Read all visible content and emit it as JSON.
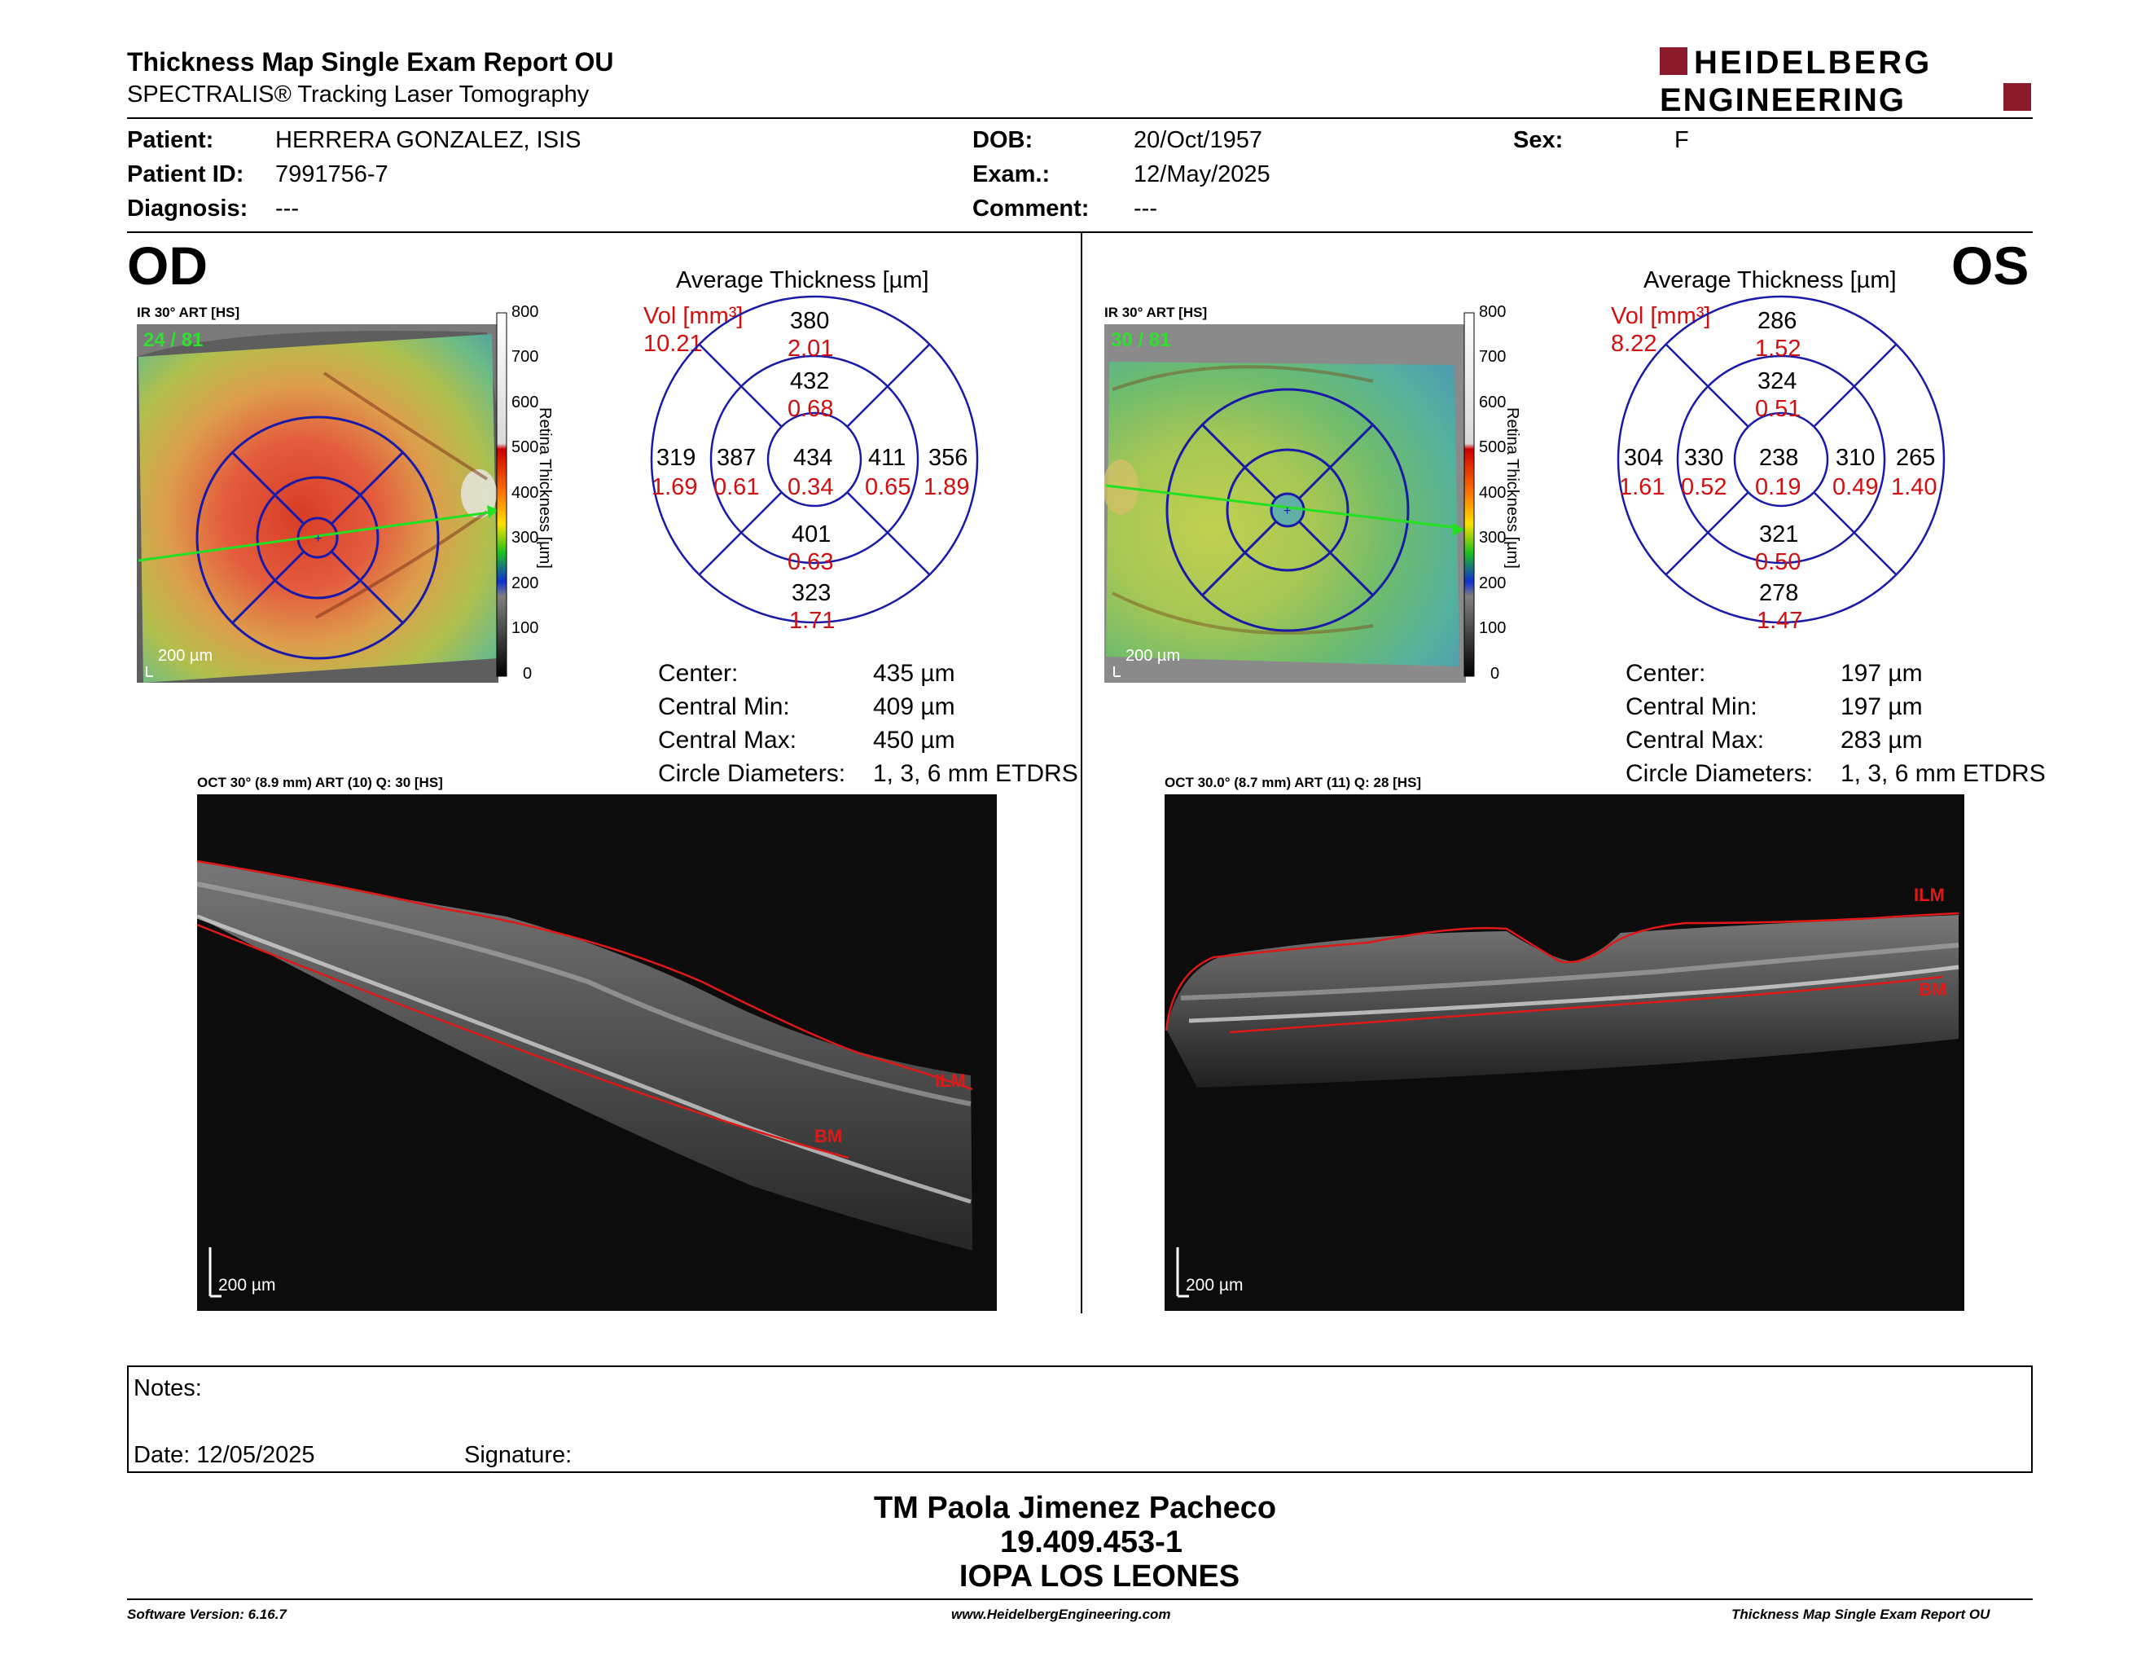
{
  "header": {
    "title": "Thickness Map Single Exam Report OU",
    "subtitle": "SPECTRALIS® Tracking Laser Tomography",
    "logo_line1": "HEIDELBERG",
    "logo_line2": "ENGINEERING",
    "logo_color": "#8b1a2b"
  },
  "patient": {
    "patient_label": "Patient:",
    "patient_value": "HERRERA GONZALEZ, ISIS",
    "id_label": "Patient ID:",
    "id_value": "7991756-7",
    "diag_label": "Diagnosis:",
    "diag_value": "---",
    "dob_label": "DOB:",
    "dob_value": "20/Oct/1957",
    "exam_label": "Exam.:",
    "exam_value": "12/May/2025",
    "comment_label": "Comment:",
    "comment_value": "---",
    "sex_label": "Sex:",
    "sex_value": "F"
  },
  "od": {
    "eye": "OD",
    "ir_label": "IR 30° ART [HS]",
    "frames": "24 / 81",
    "scale_bar": "200 µm",
    "avg_title": "Average Thickness [µm]",
    "vol_label": "Vol [mm³]",
    "vol_total": "10.21",
    "grid": {
      "center": {
        "t": "434",
        "v": "0.34"
      },
      "inner_sup": {
        "t": "432",
        "v": "0.68"
      },
      "inner_inf": {
        "t": "401",
        "v": "0.63"
      },
      "inner_left": {
        "t": "387",
        "v": "0.61"
      },
      "inner_right": {
        "t": "411",
        "v": "0.65"
      },
      "outer_sup": {
        "t": "380",
        "v": "2.01"
      },
      "outer_inf": {
        "t": "323",
        "v": "1.71"
      },
      "outer_left": {
        "t": "319",
        "v": "1.69"
      },
      "outer_right": {
        "t": "356",
        "v": "1.89"
      }
    },
    "stats": {
      "center_label": "Center:",
      "center_value": "435 µm",
      "min_label": "Central Min:",
      "min_value": "409 µm",
      "max_label": "Central Max:",
      "max_value": "450 µm",
      "diam_label": "Circle Diameters:",
      "diam_value": "1, 3, 6 mm ETDRS"
    },
    "oct_label": "OCT 30° (8.9 mm) ART (10) Q: 30 [HS]",
    "oct_scale": "200 µm",
    "ilm": "ILM",
    "bm": "BM"
  },
  "os": {
    "eye": "OS",
    "ir_label": "IR 30° ART [HS]",
    "frames": "30 / 81",
    "scale_bar": "200 µm",
    "avg_title": "Average Thickness [µm]",
    "vol_label": "Vol [mm³]",
    "vol_total": "8.22",
    "grid": {
      "center": {
        "t": "238",
        "v": "0.19"
      },
      "inner_sup": {
        "t": "324",
        "v": "0.51"
      },
      "inner_inf": {
        "t": "321",
        "v": "0.50"
      },
      "inner_left": {
        "t": "330",
        "v": "0.52"
      },
      "inner_right": {
        "t": "310",
        "v": "0.49"
      },
      "outer_sup": {
        "t": "286",
        "v": "1.52"
      },
      "outer_inf": {
        "t": "278",
        "v": "1.47"
      },
      "outer_left": {
        "t": "304",
        "v": "1.61"
      },
      "outer_right": {
        "t": "265",
        "v": "1.40"
      }
    },
    "stats": {
      "center_label": "Center:",
      "center_value": "197 µm",
      "min_label": "Central Min:",
      "min_value": "197 µm",
      "max_label": "Central Max:",
      "max_value": "283 µm",
      "diam_label": "Circle Diameters:",
      "diam_value": "1, 3, 6 mm ETDRS"
    },
    "oct_label": "OCT 30.0° (8.7 mm) ART (11) Q: 28 [HS]",
    "oct_scale": "200 µm",
    "ilm": "ILM",
    "bm": "BM"
  },
  "colorscale": {
    "ticks": [
      "800",
      "700",
      "600",
      "500",
      "400",
      "300",
      "200",
      "100",
      "0"
    ],
    "axis_label": "Retina Thickness [µm]"
  },
  "notes": {
    "notes_label": "Notes:",
    "date_label": "Date: 12/05/2025",
    "signature_label": "Signature:"
  },
  "signature": {
    "name": "TM Paola Jimenez Pacheco",
    "id": "19.409.453-1",
    "org": "IOPA LOS LEONES"
  },
  "footer": {
    "software": "Software Version: 6.16.7",
    "url": "www.HeidelbergEngineering.com",
    "report": "Thickness Map Single Exam Report OU"
  },
  "colors": {
    "grid_blue": "#1a1aa8",
    "value_red": "#d01010",
    "ilm_red": "#e01818",
    "frames_green": "#2fe02f"
  }
}
